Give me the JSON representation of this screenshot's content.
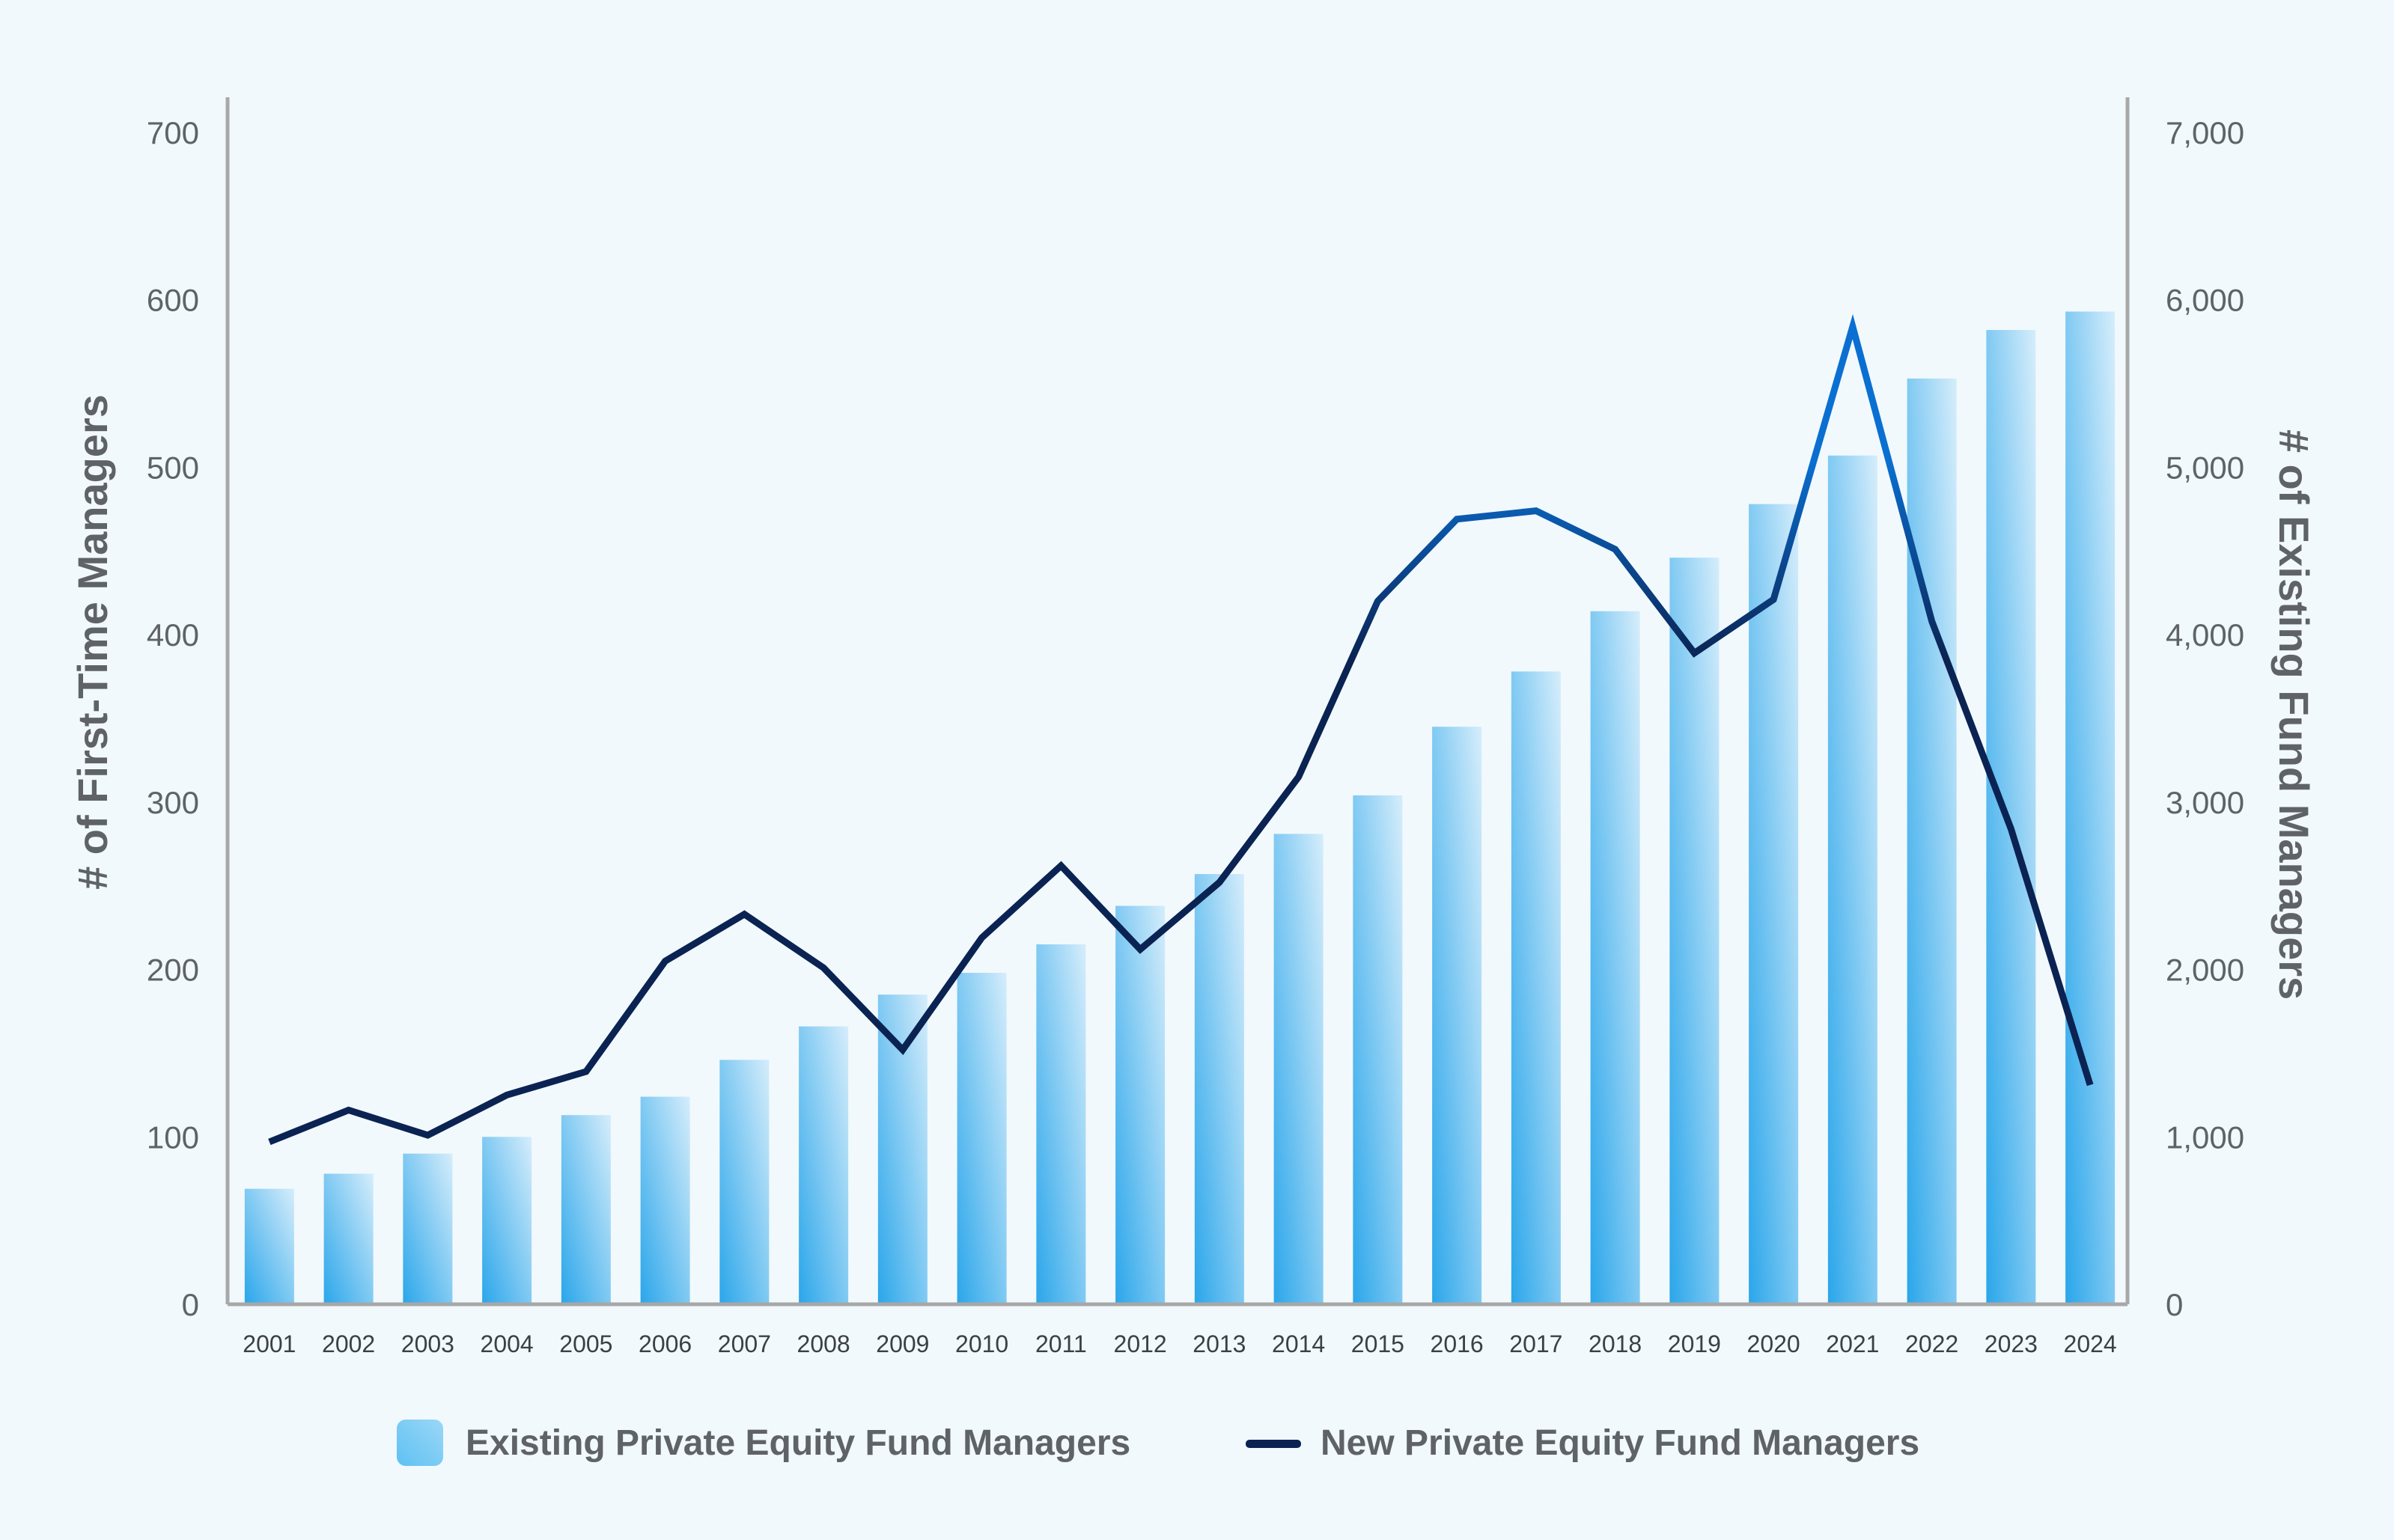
{
  "chart_data": {
    "type": "bar",
    "title": "",
    "categories": [
      "2001",
      "2002",
      "2003",
      "2004",
      "2005",
      "2006",
      "2007",
      "2008",
      "2009",
      "2010",
      "2011",
      "2012",
      "2013",
      "2014",
      "2015",
      "2016",
      "2017",
      "2018",
      "2019",
      "2020",
      "2021",
      "2022",
      "2023",
      "2024"
    ],
    "series": [
      {
        "name": "Existing Private Equity Fund Managers",
        "type": "bar",
        "axis": "right",
        "values": [
          690,
          780,
          900,
          1000,
          1130,
          1240,
          1460,
          1660,
          1850,
          1980,
          2150,
          2380,
          2570,
          2810,
          3040,
          3450,
          3780,
          4140,
          4460,
          4780,
          5070,
          5530,
          5820,
          5930
        ]
      },
      {
        "name": "New Private Equity Fund Managers",
        "type": "line",
        "axis": "left",
        "values": [
          97,
          116,
          101,
          125,
          139,
          205,
          233,
          201,
          152,
          219,
          262,
          212,
          252,
          315,
          420,
          469,
          474,
          451,
          389,
          421,
          584,
          408,
          284,
          131
        ]
      }
    ],
    "ylabel_left": "# of First-Time Managers",
    "ylabel_right": "# of Existing Fund Managers",
    "ylim_left": [
      0,
      700
    ],
    "ylim_right": [
      0,
      7000
    ],
    "yticks_left": [
      "0",
      "100",
      "200",
      "300",
      "400",
      "500",
      "600",
      "700"
    ],
    "yticks_right": [
      "0",
      "1,000",
      "2,000",
      "3,000",
      "4,000",
      "5,000",
      "6,000",
      "7,000"
    ],
    "grid": false,
    "legend_position": "bottom-center",
    "colors": {
      "bar_dark": "#2aa6ea",
      "bar_light": "#d6edfb",
      "line_dark": "#0b2352",
      "line_bright": "#0a6fd1",
      "axis": "#a8a8a8"
    }
  }
}
